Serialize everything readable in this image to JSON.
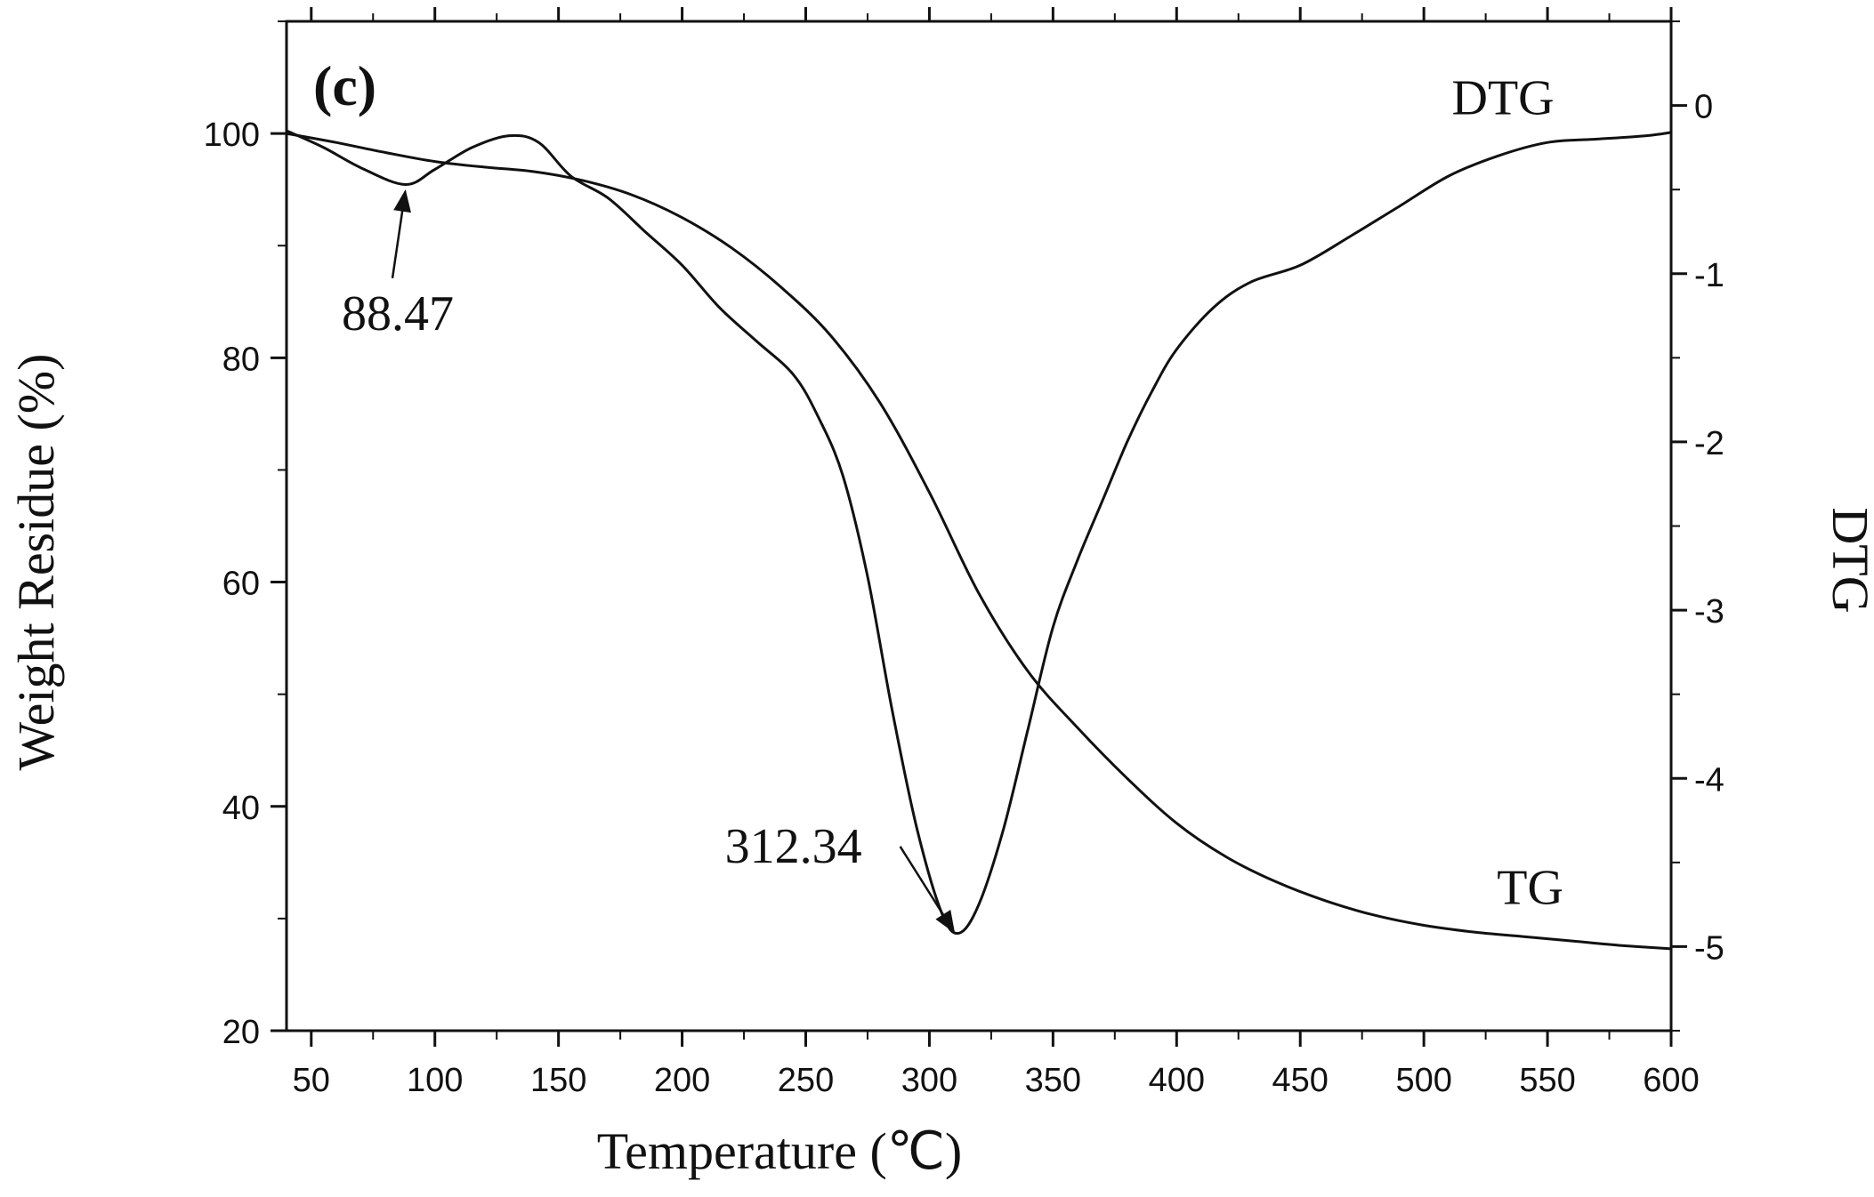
{
  "chart_data": {
    "type": "line",
    "panel_label": "(c)",
    "xlabel": "Temperature (℃)",
    "ylabel_left": "Weight Residue (%)",
    "ylabel_right": "DTG",
    "xlim": [
      40,
      600
    ],
    "ylim_left": [
      20,
      110
    ],
    "ylim_right": [
      -5.5,
      0.5
    ],
    "x_ticks": [
      50,
      100,
      150,
      200,
      250,
      300,
      350,
      400,
      450,
      500,
      550,
      600
    ],
    "y_left_ticks": [
      20,
      40,
      60,
      80,
      100
    ],
    "y_right_ticks": [
      0,
      -1,
      -2,
      -3,
      -4,
      -5
    ],
    "grid": false,
    "series": [
      {
        "name": "TG",
        "axis": "left",
        "points": [
          [
            40,
            100.0
          ],
          [
            60,
            99.2
          ],
          [
            80,
            98.3
          ],
          [
            100,
            97.5
          ],
          [
            120,
            97.0
          ],
          [
            140,
            96.6
          ],
          [
            160,
            95.8
          ],
          [
            180,
            94.5
          ],
          [
            200,
            92.5
          ],
          [
            220,
            89.8
          ],
          [
            240,
            86.3
          ],
          [
            260,
            82.0
          ],
          [
            280,
            76.0
          ],
          [
            300,
            68.0
          ],
          [
            320,
            59.0
          ],
          [
            340,
            52.0
          ],
          [
            360,
            47.0
          ],
          [
            380,
            42.5
          ],
          [
            400,
            38.5
          ],
          [
            420,
            35.5
          ],
          [
            440,
            33.3
          ],
          [
            460,
            31.6
          ],
          [
            480,
            30.3
          ],
          [
            500,
            29.4
          ],
          [
            520,
            28.8
          ],
          [
            540,
            28.4
          ],
          [
            560,
            28.0
          ],
          [
            580,
            27.6
          ],
          [
            600,
            27.3
          ]
        ]
      },
      {
        "name": "DTG",
        "axis": "right",
        "points": [
          [
            40,
            -0.15
          ],
          [
            55,
            -0.25
          ],
          [
            70,
            -0.37
          ],
          [
            88,
            -0.47
          ],
          [
            100,
            -0.38
          ],
          [
            115,
            -0.25
          ],
          [
            130,
            -0.18
          ],
          [
            142,
            -0.22
          ],
          [
            155,
            -0.42
          ],
          [
            170,
            -0.55
          ],
          [
            185,
            -0.75
          ],
          [
            200,
            -0.95
          ],
          [
            215,
            -1.2
          ],
          [
            230,
            -1.4
          ],
          [
            245,
            -1.6
          ],
          [
            255,
            -1.85
          ],
          [
            265,
            -2.2
          ],
          [
            275,
            -2.8
          ],
          [
            285,
            -3.6
          ],
          [
            295,
            -4.3
          ],
          [
            305,
            -4.8
          ],
          [
            312,
            -4.92
          ],
          [
            320,
            -4.75
          ],
          [
            330,
            -4.3
          ],
          [
            340,
            -3.7
          ],
          [
            350,
            -3.1
          ],
          [
            360,
            -2.7
          ],
          [
            370,
            -2.35
          ],
          [
            380,
            -2.0
          ],
          [
            390,
            -1.7
          ],
          [
            400,
            -1.45
          ],
          [
            415,
            -1.2
          ],
          [
            430,
            -1.05
          ],
          [
            450,
            -0.95
          ],
          [
            470,
            -0.78
          ],
          [
            490,
            -0.6
          ],
          [
            510,
            -0.42
          ],
          [
            530,
            -0.3
          ],
          [
            550,
            -0.22
          ],
          [
            570,
            -0.2
          ],
          [
            590,
            -0.18
          ],
          [
            600,
            -0.16
          ]
        ]
      }
    ],
    "annotations": [
      {
        "text": "88.47",
        "target_x": 88,
        "target_y_right": -0.47,
        "text_x": 85,
        "text_y_left": 82.5
      },
      {
        "text": "312.34",
        "target_x": 312,
        "target_y_right": -4.92,
        "text_x": 245,
        "text_y_left": 35
      }
    ],
    "series_labels": [
      {
        "text": "DTG",
        "x": 532,
        "y_left": 101.7
      },
      {
        "text": "TG",
        "x": 543,
        "y_left": 31.3
      }
    ]
  }
}
